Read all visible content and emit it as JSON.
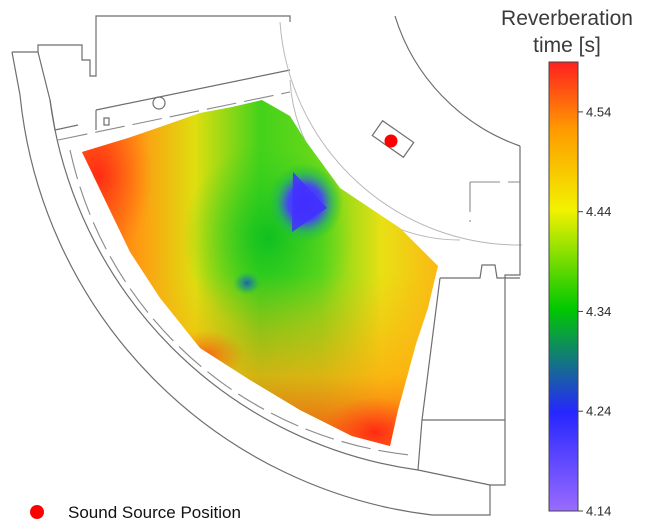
{
  "colorbar": {
    "title_line1": "Reverberation",
    "title_line2": "time [s]",
    "ticks": [
      "4.54",
      "4.44",
      "4.34",
      "4.24",
      "4.14"
    ],
    "min": 4.14,
    "max": 4.59
  },
  "legend": {
    "source_label": "Sound Source Position"
  },
  "colors": {
    "source_marker": "#ff0000",
    "colormap": [
      "#9966ff",
      "#2222ff",
      "#00c800",
      "#ffff00",
      "#ff9900",
      "#ff2222"
    ]
  }
}
